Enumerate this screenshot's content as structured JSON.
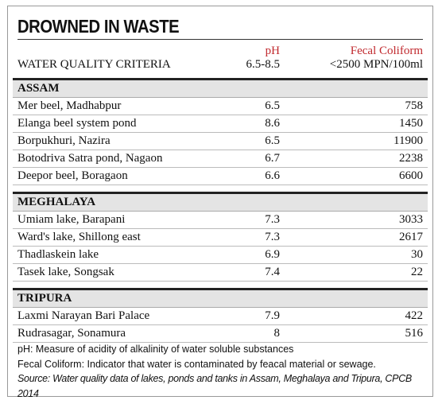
{
  "title": "DROWNED IN WASTE",
  "header": {
    "criteria": "WATER QUALITY CRITERIA",
    "ph": "pH",
    "ph_range": "6.5-8.5",
    "coliform": "Fecal Coliform",
    "coliform_range": "<2500 MPN/100ml"
  },
  "sections": [
    {
      "name": "ASSAM",
      "rows": [
        [
          "Mer beel, Madhabpur",
          6.5,
          758
        ],
        [
          "Elanga beel system pond",
          8.6,
          1450
        ],
        [
          "Borpukhuri, Nazira",
          6.5,
          11900
        ],
        [
          "Botodriva Satra pond, Nagaon",
          6.7,
          2238
        ],
        [
          "Deepor beel, Boragaon",
          6.6,
          6600
        ]
      ]
    },
    {
      "name": "MEGHALAYA",
      "rows": [
        [
          "Umiam lake, Barapani",
          7.3,
          3033
        ],
        [
          "Ward's lake, Shillong east",
          7.3,
          2617
        ],
        [
          "Thadlaskein lake",
          6.9,
          30
        ],
        [
          "Tasek lake, Songsak",
          7.4,
          22
        ]
      ]
    },
    {
      "name": "TRIPURA",
      "rows": [
        [
          "Laxmi Narayan Bari Palace",
          7.9,
          422
        ],
        [
          "Rudrasagar, Sonamura",
          8,
          516
        ]
      ]
    }
  ],
  "notes": [
    "pH: Measure of acidity of alkalinity of water soluble substances",
    "Fecal Coliform: Indicator that water is contaminated by feacal material or sewage."
  ],
  "source": "Source: Water quality data of lakes, ponds and tanks in Assam, Meghalaya and Tripura, CPCB 2014"
}
